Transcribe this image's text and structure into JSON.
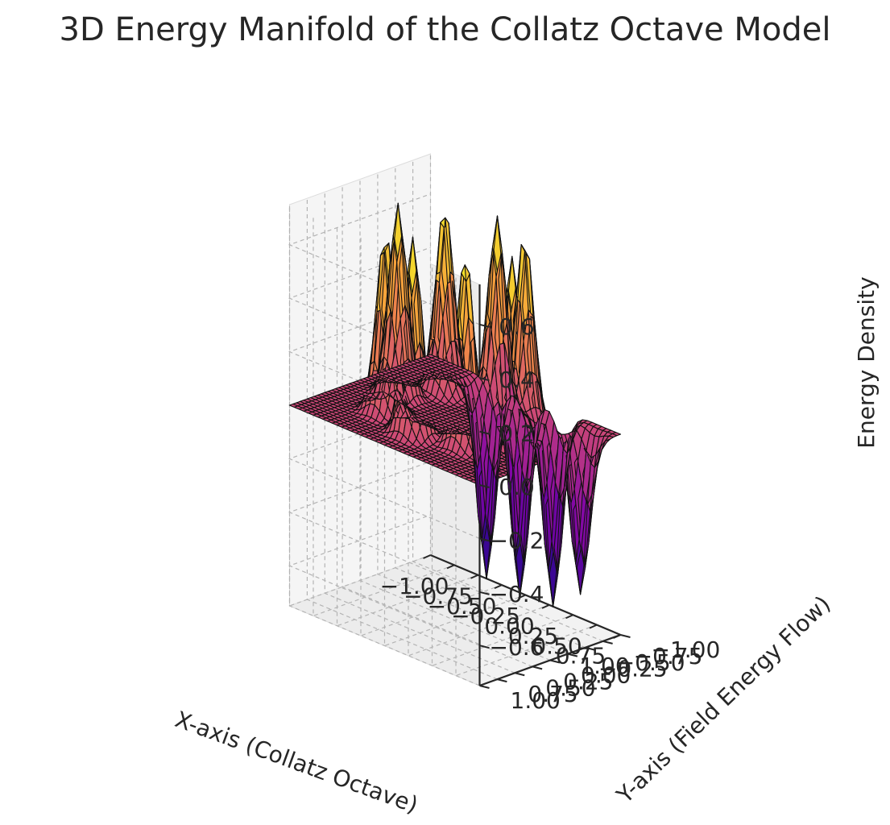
{
  "chart_data": {
    "type": "surface3d",
    "title": "3D Energy Manifold of the Collatz Octave Model",
    "xlabel": "X-axis (Collatz Octave)",
    "ylabel": "Y-axis (Field Energy Flow)",
    "zlabel": "Energy Density",
    "xlim": [
      -1.0,
      1.0
    ],
    "ylim": [
      -1.0,
      1.0
    ],
    "zlim": [
      -0.75,
      0.75
    ],
    "x_ticks": [
      "−1.00",
      "−0.75",
      "−0.50",
      "−0.25",
      "0.00",
      "0.25",
      "0.50",
      "0.75",
      "1.00"
    ],
    "y_ticks": [
      "−1.00",
      "−0.75",
      "−0.50",
      "−0.25",
      "0.00",
      "0.25",
      "0.50",
      "0.75",
      "1.00"
    ],
    "z_ticks": [
      "−0.6",
      "−0.4",
      "−0.2",
      "0.0",
      "0.2",
      "0.4",
      "0.6"
    ],
    "z_tick_values": [
      -0.6,
      -0.4,
      -0.2,
      0.0,
      0.2,
      0.4,
      0.6
    ],
    "colormap": "plasma",
    "grid": true,
    "grid_resolution": 40,
    "base_level": 0.0,
    "peaks": [
      {
        "x": -0.6,
        "y": 0.0,
        "z": 0.72
      },
      {
        "x": -0.42,
        "y": 0.42,
        "z": 0.68
      },
      {
        "x": 0.0,
        "y": 0.6,
        "z": 0.74
      },
      {
        "x": 0.42,
        "y": 0.42,
        "z": 0.72
      },
      {
        "x": 0.6,
        "y": 0.0,
        "z": 0.7
      },
      {
        "x": 0.42,
        "y": -0.42,
        "z": 0.72
      },
      {
        "x": 0.0,
        "y": -0.6,
        "z": 0.71
      },
      {
        "x": -0.42,
        "y": -0.42,
        "z": 0.7
      }
    ],
    "troughs": [
      {
        "x": -0.3,
        "y": -0.85,
        "z": -0.72
      },
      {
        "x": 0.05,
        "y": -0.85,
        "z": -0.74
      },
      {
        "x": 0.4,
        "y": -0.85,
        "z": -0.72
      },
      {
        "x": 0.8,
        "y": -0.7,
        "z": -0.6
      }
    ],
    "peak_width": 0.08
  }
}
